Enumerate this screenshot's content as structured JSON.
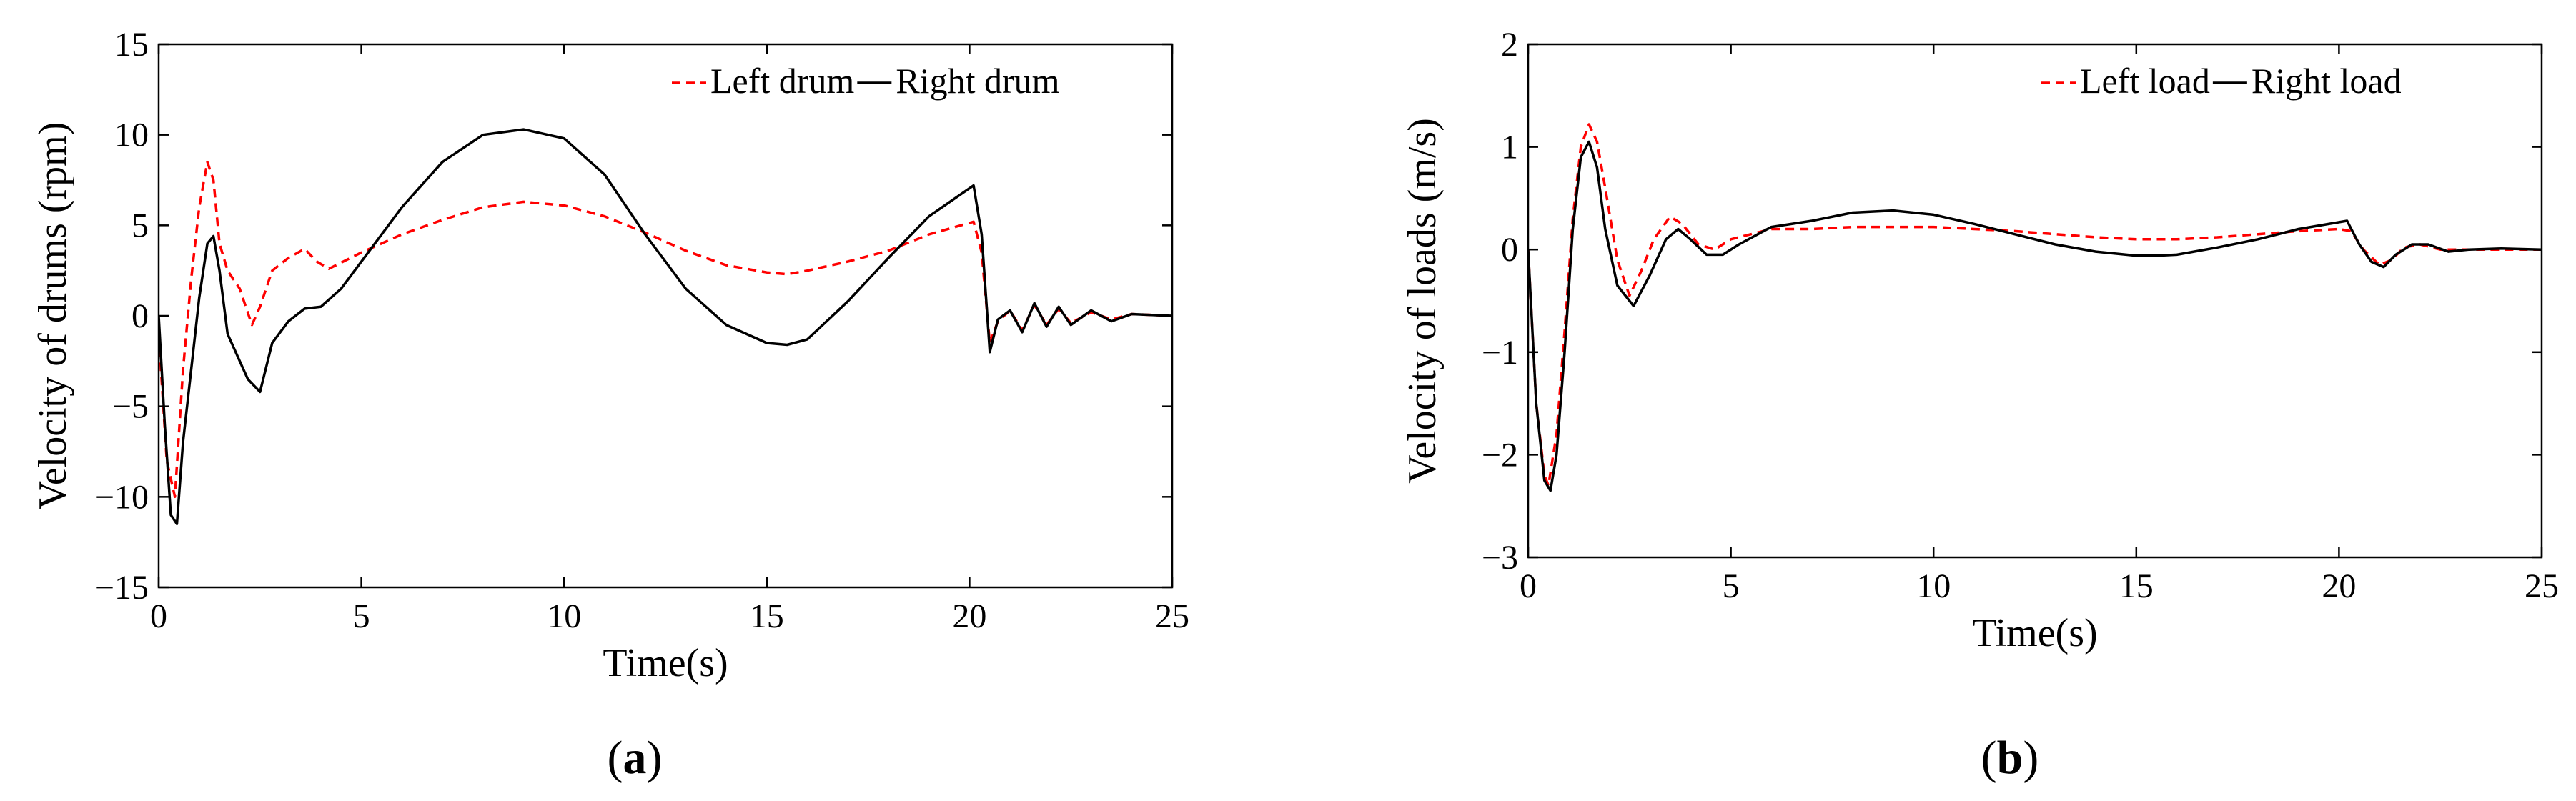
{
  "chart_data": [
    {
      "type": "line",
      "panel_label": "(a)",
      "xlabel": "Time(s)",
      "ylabel": "Velocity of drums (rpm)",
      "xlim": [
        0,
        25
      ],
      "ylim": [
        -15,
        15
      ],
      "xticks": [
        0,
        5,
        10,
        15,
        20,
        25
      ],
      "yticks": [
        -15,
        -10,
        -5,
        0,
        5,
        10,
        15
      ],
      "grid": false,
      "legend_position": "top-right",
      "series": [
        {
          "name": "Left drum",
          "color": "#ff0000",
          "dash": "dashed",
          "x": [
            0,
            0.2,
            0.4,
            0.6,
            0.8,
            1.0,
            1.2,
            1.35,
            1.5,
            1.7,
            2.0,
            2.3,
            2.5,
            2.8,
            3.2,
            3.6,
            3.9,
            4.2,
            5,
            6,
            7,
            8,
            9,
            10,
            11,
            12,
            13,
            14,
            15,
            15.5,
            16,
            17,
            18,
            19,
            20.1,
            20.3,
            20.5,
            20.7,
            21,
            21.3,
            21.6,
            21.9,
            22.2,
            22.5,
            23,
            23.5,
            24,
            25
          ],
          "y": [
            -1,
            -8,
            -10,
            -3,
            2,
            6,
            8.5,
            7.5,
            4,
            2.5,
            1.5,
            -0.5,
            0.5,
            2.5,
            3.2,
            3.7,
            3.0,
            2.6,
            3.5,
            4.5,
            5.3,
            6.0,
            6.3,
            6.1,
            5.5,
            4.6,
            3.6,
            2.8,
            2.4,
            2.3,
            2.5,
            3.0,
            3.6,
            4.5,
            5.2,
            3.5,
            -1.5,
            -0.3,
            0.3,
            -0.8,
            0.6,
            -0.5,
            0.4,
            -0.4,
            0.2,
            -0.2,
            0.1,
            0
          ]
        },
        {
          "name": "Right drum",
          "color": "#000000",
          "dash": "solid",
          "x": [
            0,
            0.15,
            0.3,
            0.45,
            0.6,
            0.8,
            1.0,
            1.2,
            1.35,
            1.5,
            1.7,
            2.0,
            2.2,
            2.5,
            2.8,
            3.2,
            3.6,
            4.0,
            4.5,
            5,
            6,
            7,
            8,
            9,
            10,
            11,
            12,
            13,
            14,
            15,
            15.5,
            16,
            17,
            18,
            19,
            20.1,
            20.3,
            20.5,
            20.7,
            21,
            21.3,
            21.6,
            21.9,
            22.2,
            22.5,
            23,
            23.5,
            24,
            25
          ],
          "y": [
            0,
            -6,
            -11,
            -11.5,
            -7,
            -3,
            1,
            4,
            4.4,
            2.5,
            -1,
            -2.5,
            -3.5,
            -4.2,
            -1.5,
            -0.3,
            0.4,
            0.5,
            1.5,
            3,
            6,
            8.5,
            10,
            10.3,
            9.8,
            7.8,
            4.5,
            1.5,
            -0.5,
            -1.5,
            -1.6,
            -1.3,
            0.8,
            3.2,
            5.5,
            7.2,
            4.5,
            -2,
            -0.2,
            0.3,
            -0.9,
            0.7,
            -0.6,
            0.5,
            -0.5,
            0.3,
            -0.3,
            0.1,
            0
          ]
        }
      ]
    },
    {
      "type": "line",
      "panel_label": "(b)",
      "xlabel": "Time(s)",
      "ylabel": "Velocity of loads (m/s)",
      "xlim": [
        0,
        25
      ],
      "ylim": [
        -3,
        2
      ],
      "xticks": [
        0,
        5,
        10,
        15,
        20,
        25
      ],
      "yticks": [
        -3,
        -2,
        -1,
        0,
        1,
        2
      ],
      "grid": false,
      "legend_position": "top-right",
      "series": [
        {
          "name": "Left load",
          "color": "#ff0000",
          "dash": "dashed",
          "x": [
            0,
            0.2,
            0.4,
            0.5,
            0.7,
            0.9,
            1.1,
            1.3,
            1.5,
            1.7,
            1.9,
            2.2,
            2.5,
            2.8,
            3.1,
            3.5,
            3.8,
            4.2,
            4.6,
            5,
            6,
            7,
            8,
            9,
            10,
            11,
            12,
            13,
            14,
            15,
            16,
            17,
            18,
            19,
            20,
            20.3,
            20.6,
            21,
            21.3,
            21.6,
            22,
            22.5,
            23,
            24,
            25
          ],
          "y": [
            0,
            -1.5,
            -2.2,
            -2.3,
            -1.8,
            -0.8,
            0.3,
            1.0,
            1.22,
            1.05,
            0.6,
            -0.1,
            -0.45,
            -0.2,
            0.1,
            0.32,
            0.25,
            0.05,
            0.0,
            0.1,
            0.2,
            0.2,
            0.22,
            0.22,
            0.22,
            0.2,
            0.18,
            0.15,
            0.12,
            0.1,
            0.1,
            0.12,
            0.15,
            0.18,
            0.2,
            0.18,
            0.0,
            -0.15,
            -0.1,
            0.02,
            0.05,
            0.0,
            0.0,
            0.0,
            0.0
          ]
        },
        {
          "name": "Right load",
          "color": "#000000",
          "dash": "solid",
          "x": [
            0,
            0.2,
            0.4,
            0.55,
            0.7,
            0.9,
            1.1,
            1.3,
            1.5,
            1.7,
            1.9,
            2.2,
            2.6,
            3.0,
            3.4,
            3.7,
            4.0,
            4.4,
            4.8,
            5.2,
            6,
            7,
            8,
            9,
            10,
            11,
            12,
            13,
            14,
            15,
            15.5,
            16,
            17,
            18,
            19,
            20.2,
            20.5,
            20.8,
            21.1,
            21.4,
            21.8,
            22.2,
            22.7,
            23.2,
            24,
            25
          ],
          "y": [
            0,
            -1.5,
            -2.25,
            -2.35,
            -2.0,
            -1.0,
            0.2,
            0.9,
            1.05,
            0.8,
            0.2,
            -0.35,
            -0.55,
            -0.25,
            0.1,
            0.2,
            0.1,
            -0.05,
            -0.05,
            0.05,
            0.22,
            0.28,
            0.36,
            0.38,
            0.34,
            0.25,
            0.15,
            0.05,
            -0.02,
            -0.06,
            -0.06,
            -0.05,
            0.02,
            0.1,
            0.2,
            0.28,
            0.05,
            -0.12,
            -0.17,
            -0.05,
            0.05,
            0.05,
            -0.02,
            0.0,
            0.01,
            0.0
          ]
        }
      ]
    }
  ]
}
